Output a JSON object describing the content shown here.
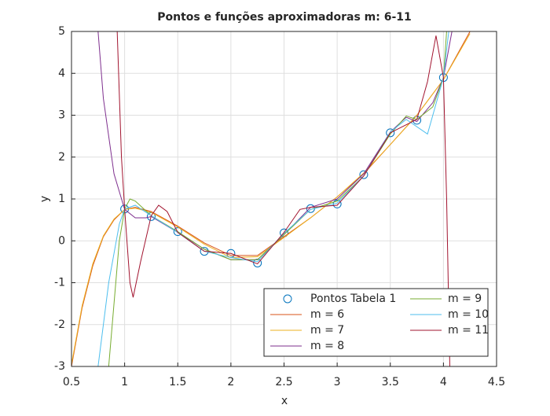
{
  "chart_data": {
    "type": "line",
    "title": "Pontos e funções aproximadoras m: 6-11",
    "x_label": "x",
    "y_label": "y",
    "xlim": [
      0.5,
      4.5
    ],
    "ylim": [
      -3,
      5
    ],
    "xticks": [
      0.5,
      1,
      1.5,
      2,
      2.5,
      3,
      3.5,
      4,
      4.5
    ],
    "yticks": [
      -3,
      -2,
      -1,
      0,
      1,
      2,
      3,
      4,
      5
    ],
    "grid": true,
    "legend_position": "southeast",
    "series": [
      {
        "name": "Pontos Tabela 1",
        "type": "scatter",
        "color": "#0072BD",
        "x": [
          1,
          1.25,
          1.5,
          1.75,
          2,
          2.25,
          2.5,
          2.75,
          3,
          3.25,
          3.5,
          3.75,
          4
        ],
        "values": [
          0.76,
          0.58,
          0.22,
          -0.25,
          -0.3,
          -0.53,
          0.19,
          0.77,
          0.88,
          1.58,
          2.58,
          2.88,
          3.9
        ]
      },
      {
        "name": "m = 6",
        "color": "#D95319",
        "x": [
          0.5,
          0.6,
          0.7,
          0.8,
          0.9,
          1,
          1.1,
          1.25,
          1.5,
          1.75,
          2,
          2.25,
          2.5,
          2.75,
          3,
          3.25,
          3.5,
          3.75,
          4,
          4.25
        ],
        "values": [
          -3,
          -1.6,
          -0.6,
          0.1,
          0.5,
          0.75,
          0.8,
          0.7,
          0.35,
          -0.05,
          -0.35,
          -0.35,
          0.1,
          0.55,
          1.05,
          1.6,
          2.3,
          3,
          3.85,
          5
        ]
      },
      {
        "name": "m = 7",
        "color": "#EDB120",
        "x": [
          0.5,
          0.6,
          0.7,
          0.8,
          0.9,
          1,
          1.1,
          1.25,
          1.5,
          1.75,
          2,
          2.25,
          2.5,
          2.75,
          3,
          3.25,
          3.5,
          3.75,
          4,
          4.25
        ],
        "values": [
          -2.95,
          -1.55,
          -0.55,
          0.12,
          0.52,
          0.75,
          0.78,
          0.68,
          0.33,
          -0.08,
          -0.4,
          -0.38,
          0.08,
          0.55,
          1.05,
          1.62,
          2.3,
          3,
          3.85,
          4.95
        ]
      },
      {
        "name": "m = 8",
        "color": "#7E2F8E",
        "x": [
          0.75,
          0.8,
          0.9,
          1,
          1.1,
          1.2,
          1.25,
          1.5,
          1.75,
          2,
          2.25,
          2.5,
          2.75,
          3,
          3.25,
          3.5,
          3.65,
          3.75,
          3.9,
          4,
          4.08
        ],
        "values": [
          5,
          3.4,
          1.6,
          0.75,
          0.55,
          0.55,
          0.58,
          0.2,
          -0.2,
          -0.45,
          -0.45,
          0.15,
          0.8,
          1,
          1.6,
          2.6,
          2.95,
          2.85,
          3.3,
          3.9,
          5
        ]
      },
      {
        "name": "m = 9",
        "color": "#77AC30",
        "x": [
          0.85,
          0.9,
          0.95,
          1,
          1.05,
          1.1,
          1.25,
          1.5,
          1.75,
          2,
          2.25,
          2.5,
          2.75,
          3,
          3.25,
          3.5,
          3.65,
          3.75,
          3.9,
          4,
          4.03
        ],
        "values": [
          -3,
          -1.5,
          0,
          0.76,
          1,
          0.95,
          0.6,
          0.22,
          -0.2,
          -0.45,
          -0.45,
          0.15,
          0.75,
          0.95,
          1.55,
          2.55,
          2.98,
          2.9,
          3.2,
          3.9,
          5
        ]
      },
      {
        "name": "m = 10",
        "color": "#4DBEEE",
        "x": [
          0.75,
          0.85,
          0.95,
          1,
          1.1,
          1.25,
          1.5,
          1.75,
          2,
          2.25,
          2.5,
          2.75,
          3,
          3.25,
          3.5,
          3.65,
          3.85,
          4,
          4.05
        ],
        "values": [
          -3,
          -1,
          0.4,
          0.76,
          0.85,
          0.6,
          0.2,
          -0.25,
          -0.4,
          -0.5,
          0.18,
          0.75,
          0.9,
          1.55,
          2.6,
          2.9,
          2.55,
          3.9,
          5
        ]
      },
      {
        "name": "m = 11",
        "color": "#A2142F",
        "x": [
          0.93,
          0.97,
          1,
          1.05,
          1.08,
          1.15,
          1.25,
          1.32,
          1.4,
          1.5,
          1.75,
          2,
          2.25,
          2.5,
          2.65,
          2.75,
          3,
          3.25,
          3.5,
          3.75,
          3.85,
          3.93,
          4,
          4.03,
          4.06
        ],
        "values": [
          5,
          2,
          0.76,
          -1,
          -1.35,
          -0.5,
          0.6,
          0.85,
          0.7,
          0.2,
          -0.25,
          -0.3,
          -0.55,
          0.2,
          0.75,
          0.8,
          0.85,
          1.55,
          2.58,
          2.9,
          3.8,
          4.9,
          3.9,
          1,
          -3
        ]
      }
    ]
  }
}
